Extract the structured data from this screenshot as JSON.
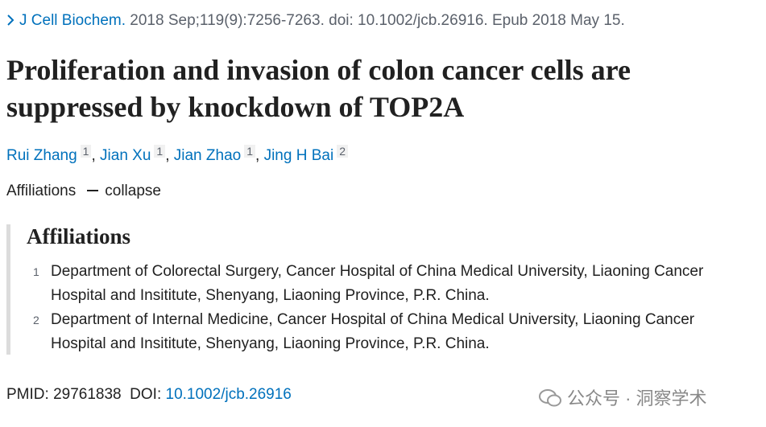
{
  "citation": {
    "journal": "J Cell Biochem.",
    "details": "2018 Sep;119(9):7256-7263. doi: 10.1002/jcb.26916. Epub 2018 May 15."
  },
  "title": "Proliferation and invasion of colon cancer cells are suppressed by knockdown of TOP2A",
  "authors": [
    {
      "name": "Rui Zhang",
      "affiliation": 1
    },
    {
      "name": "Jian Xu",
      "affiliation": 1
    },
    {
      "name": "Jian Zhao",
      "affiliation": 1
    },
    {
      "name": "Jing H Bai",
      "affiliation": 2
    }
  ],
  "author_separator": ",",
  "affiliations_toggle": {
    "label": "Affiliations",
    "action": "collapse"
  },
  "affiliations": {
    "heading": "Affiliations",
    "items": [
      {
        "number": 1,
        "text": "Department of Colorectal Surgery, Cancer Hospital of China Medical University, Liaoning Cancer Hospital and Insititute, Shenyang, Liaoning Province, P.R. China."
      },
      {
        "number": 2,
        "text": "Department of Internal Medicine, Cancer Hospital of China Medical University, Liaoning Cancer Hospital and Insititute, Shenyang, Liaoning Province, P.R. China."
      }
    ]
  },
  "identifiers": {
    "pmid_label": "PMID:",
    "pmid": "29761838",
    "doi_label": "DOI:",
    "doi": "10.1002/jcb.26916"
  },
  "watermark": "公众号 · 洞察学术"
}
